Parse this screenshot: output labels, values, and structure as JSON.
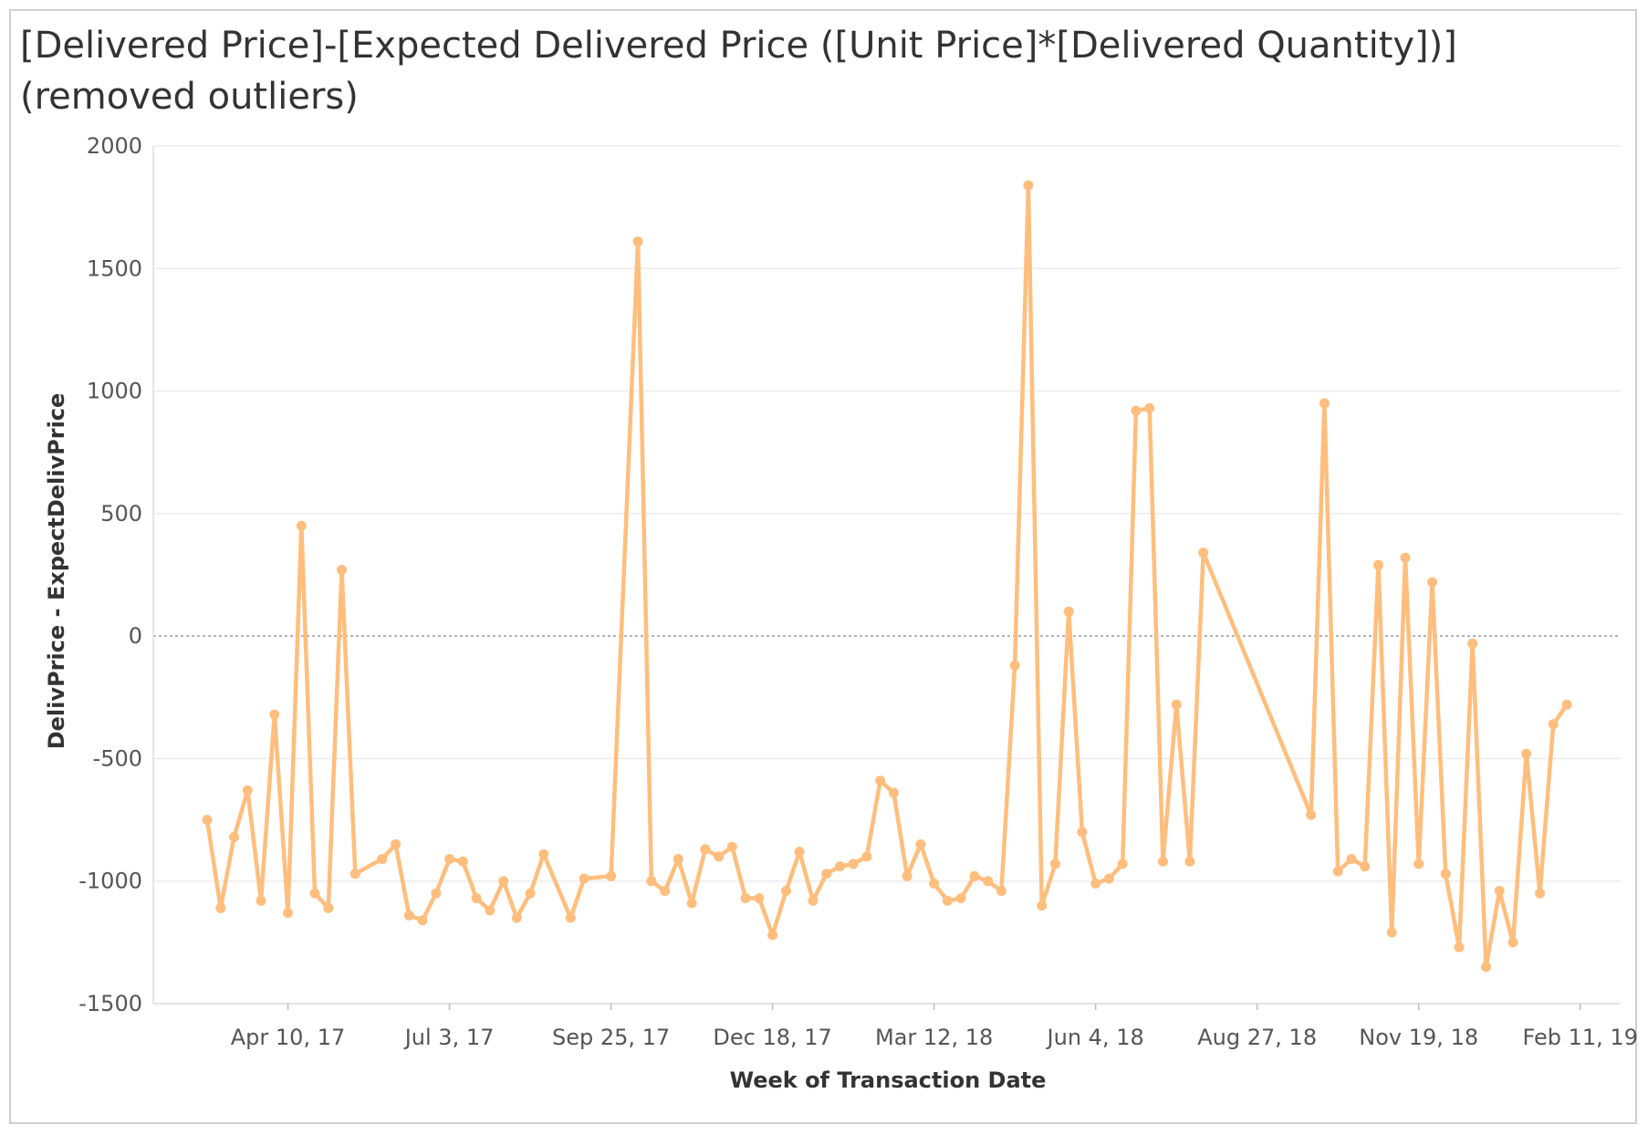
{
  "chart_data": {
    "type": "line",
    "title": "[Delivered Price]-[Expected Delivered Price ([Unit Price]*[Delivered Quantity])] (removed outliers)",
    "xlabel": "Week of Transaction Date",
    "ylabel": "DelivPrice - ExpectDelivPrice",
    "ylim": [
      -1500,
      2000
    ],
    "xlim": [
      "2017-01-30",
      "2019-03-04"
    ],
    "y_ticks": [
      2000,
      1500,
      1000,
      500,
      0,
      -500,
      -1000,
      -1500
    ],
    "y_tick_labels": [
      "2000",
      "1500",
      "1000",
      "500",
      "0",
      "-500",
      "-1000",
      "-1500"
    ],
    "x_ticks": [
      "2017-04-10",
      "2017-07-03",
      "2017-09-25",
      "2017-12-18",
      "2018-03-12",
      "2018-06-04",
      "2018-08-27",
      "2018-11-19",
      "2019-02-11"
    ],
    "x_tick_labels": [
      "Apr 10, 17",
      "Jul 3, 17",
      "Sep 25, 17",
      "Dec 18, 17",
      "Mar 12, 18",
      "Jun 4, 18",
      "Aug 27, 18",
      "Nov 19, 18",
      "Feb 11, 19"
    ],
    "grid": true,
    "zero_line": true,
    "legend": "none",
    "series": [
      {
        "color": "#ffbe7d",
        "points": [
          {
            "x": "2017-02-27",
            "y": -750
          },
          {
            "x": "2017-03-06",
            "y": -1110
          },
          {
            "x": "2017-03-13",
            "y": -820
          },
          {
            "x": "2017-03-20",
            "y": -630
          },
          {
            "x": "2017-03-27",
            "y": -1080
          },
          {
            "x": "2017-04-03",
            "y": -320
          },
          {
            "x": "2017-04-10",
            "y": -1130
          },
          {
            "x": "2017-04-17",
            "y": 450
          },
          {
            "x": "2017-04-24",
            "y": -1050
          },
          {
            "x": "2017-05-01",
            "y": -1110
          },
          {
            "x": "2017-05-08",
            "y": 270
          },
          {
            "x": "2017-05-15",
            "y": -970
          },
          {
            "x": "2017-05-29",
            "y": -910
          },
          {
            "x": "2017-06-05",
            "y": -850
          },
          {
            "x": "2017-06-12",
            "y": -1140
          },
          {
            "x": "2017-06-19",
            "y": -1160
          },
          {
            "x": "2017-06-26",
            "y": -1050
          },
          {
            "x": "2017-07-03",
            "y": -910
          },
          {
            "x": "2017-07-10",
            "y": -920
          },
          {
            "x": "2017-07-17",
            "y": -1070
          },
          {
            "x": "2017-07-24",
            "y": -1120
          },
          {
            "x": "2017-07-31",
            "y": -1000
          },
          {
            "x": "2017-08-07",
            "y": -1150
          },
          {
            "x": "2017-08-14",
            "y": -1050
          },
          {
            "x": "2017-08-21",
            "y": -890
          },
          {
            "x": "2017-09-04",
            "y": -1150
          },
          {
            "x": "2017-09-11",
            "y": -990
          },
          {
            "x": "2017-09-25",
            "y": -980
          },
          {
            "x": "2017-10-09",
            "y": 1610
          },
          {
            "x": "2017-10-16",
            "y": -1000
          },
          {
            "x": "2017-10-23",
            "y": -1040
          },
          {
            "x": "2017-10-30",
            "y": -910
          },
          {
            "x": "2017-11-06",
            "y": -1090
          },
          {
            "x": "2017-11-13",
            "y": -870
          },
          {
            "x": "2017-11-20",
            "y": -900
          },
          {
            "x": "2017-11-27",
            "y": -860
          },
          {
            "x": "2017-12-04",
            "y": -1070
          },
          {
            "x": "2017-12-11",
            "y": -1070
          },
          {
            "x": "2017-12-18",
            "y": -1220
          },
          {
            "x": "2017-12-25",
            "y": -1040
          },
          {
            "x": "2018-01-01",
            "y": -880
          },
          {
            "x": "2018-01-08",
            "y": -1080
          },
          {
            "x": "2018-01-15",
            "y": -970
          },
          {
            "x": "2018-01-22",
            "y": -940
          },
          {
            "x": "2018-01-29",
            "y": -930
          },
          {
            "x": "2018-02-05",
            "y": -900
          },
          {
            "x": "2018-02-12",
            "y": -590
          },
          {
            "x": "2018-02-19",
            "y": -640
          },
          {
            "x": "2018-02-26",
            "y": -980
          },
          {
            "x": "2018-03-05",
            "y": -850
          },
          {
            "x": "2018-03-12",
            "y": -1010
          },
          {
            "x": "2018-03-19",
            "y": -1080
          },
          {
            "x": "2018-03-26",
            "y": -1070
          },
          {
            "x": "2018-04-02",
            "y": -980
          },
          {
            "x": "2018-04-09",
            "y": -1000
          },
          {
            "x": "2018-04-16",
            "y": -1040
          },
          {
            "x": "2018-04-23",
            "y": -120
          },
          {
            "x": "2018-04-30",
            "y": 1840
          },
          {
            "x": "2018-05-07",
            "y": -1100
          },
          {
            "x": "2018-05-14",
            "y": -930
          },
          {
            "x": "2018-05-21",
            "y": 100
          },
          {
            "x": "2018-05-28",
            "y": -800
          },
          {
            "x": "2018-06-04",
            "y": -1010
          },
          {
            "x": "2018-06-11",
            "y": -990
          },
          {
            "x": "2018-06-18",
            "y": -930
          },
          {
            "x": "2018-06-25",
            "y": 920
          },
          {
            "x": "2018-07-02",
            "y": 930
          },
          {
            "x": "2018-07-09",
            "y": -920
          },
          {
            "x": "2018-07-16",
            "y": -280
          },
          {
            "x": "2018-07-23",
            "y": -920
          },
          {
            "x": "2018-07-30",
            "y": 340
          },
          {
            "x": "2018-09-24",
            "y": -730
          },
          {
            "x": "2018-10-01",
            "y": 950
          },
          {
            "x": "2018-10-08",
            "y": -960
          },
          {
            "x": "2018-10-15",
            "y": -910
          },
          {
            "x": "2018-10-22",
            "y": -940
          },
          {
            "x": "2018-10-29",
            "y": 290
          },
          {
            "x": "2018-11-05",
            "y": -1210
          },
          {
            "x": "2018-11-12",
            "y": 320
          },
          {
            "x": "2018-11-19",
            "y": -930
          },
          {
            "x": "2018-11-26",
            "y": 220
          },
          {
            "x": "2018-12-03",
            "y": -970
          },
          {
            "x": "2018-12-10",
            "y": -1270
          },
          {
            "x": "2018-12-17",
            "y": -30
          },
          {
            "x": "2018-12-24",
            "y": -1350
          },
          {
            "x": "2018-12-31",
            "y": -1040
          },
          {
            "x": "2019-01-07",
            "y": -1250
          },
          {
            "x": "2019-01-14",
            "y": -480
          },
          {
            "x": "2019-01-21",
            "y": -1050
          },
          {
            "x": "2019-01-28",
            "y": -360
          },
          {
            "x": "2019-02-04",
            "y": -280
          }
        ]
      }
    ]
  }
}
